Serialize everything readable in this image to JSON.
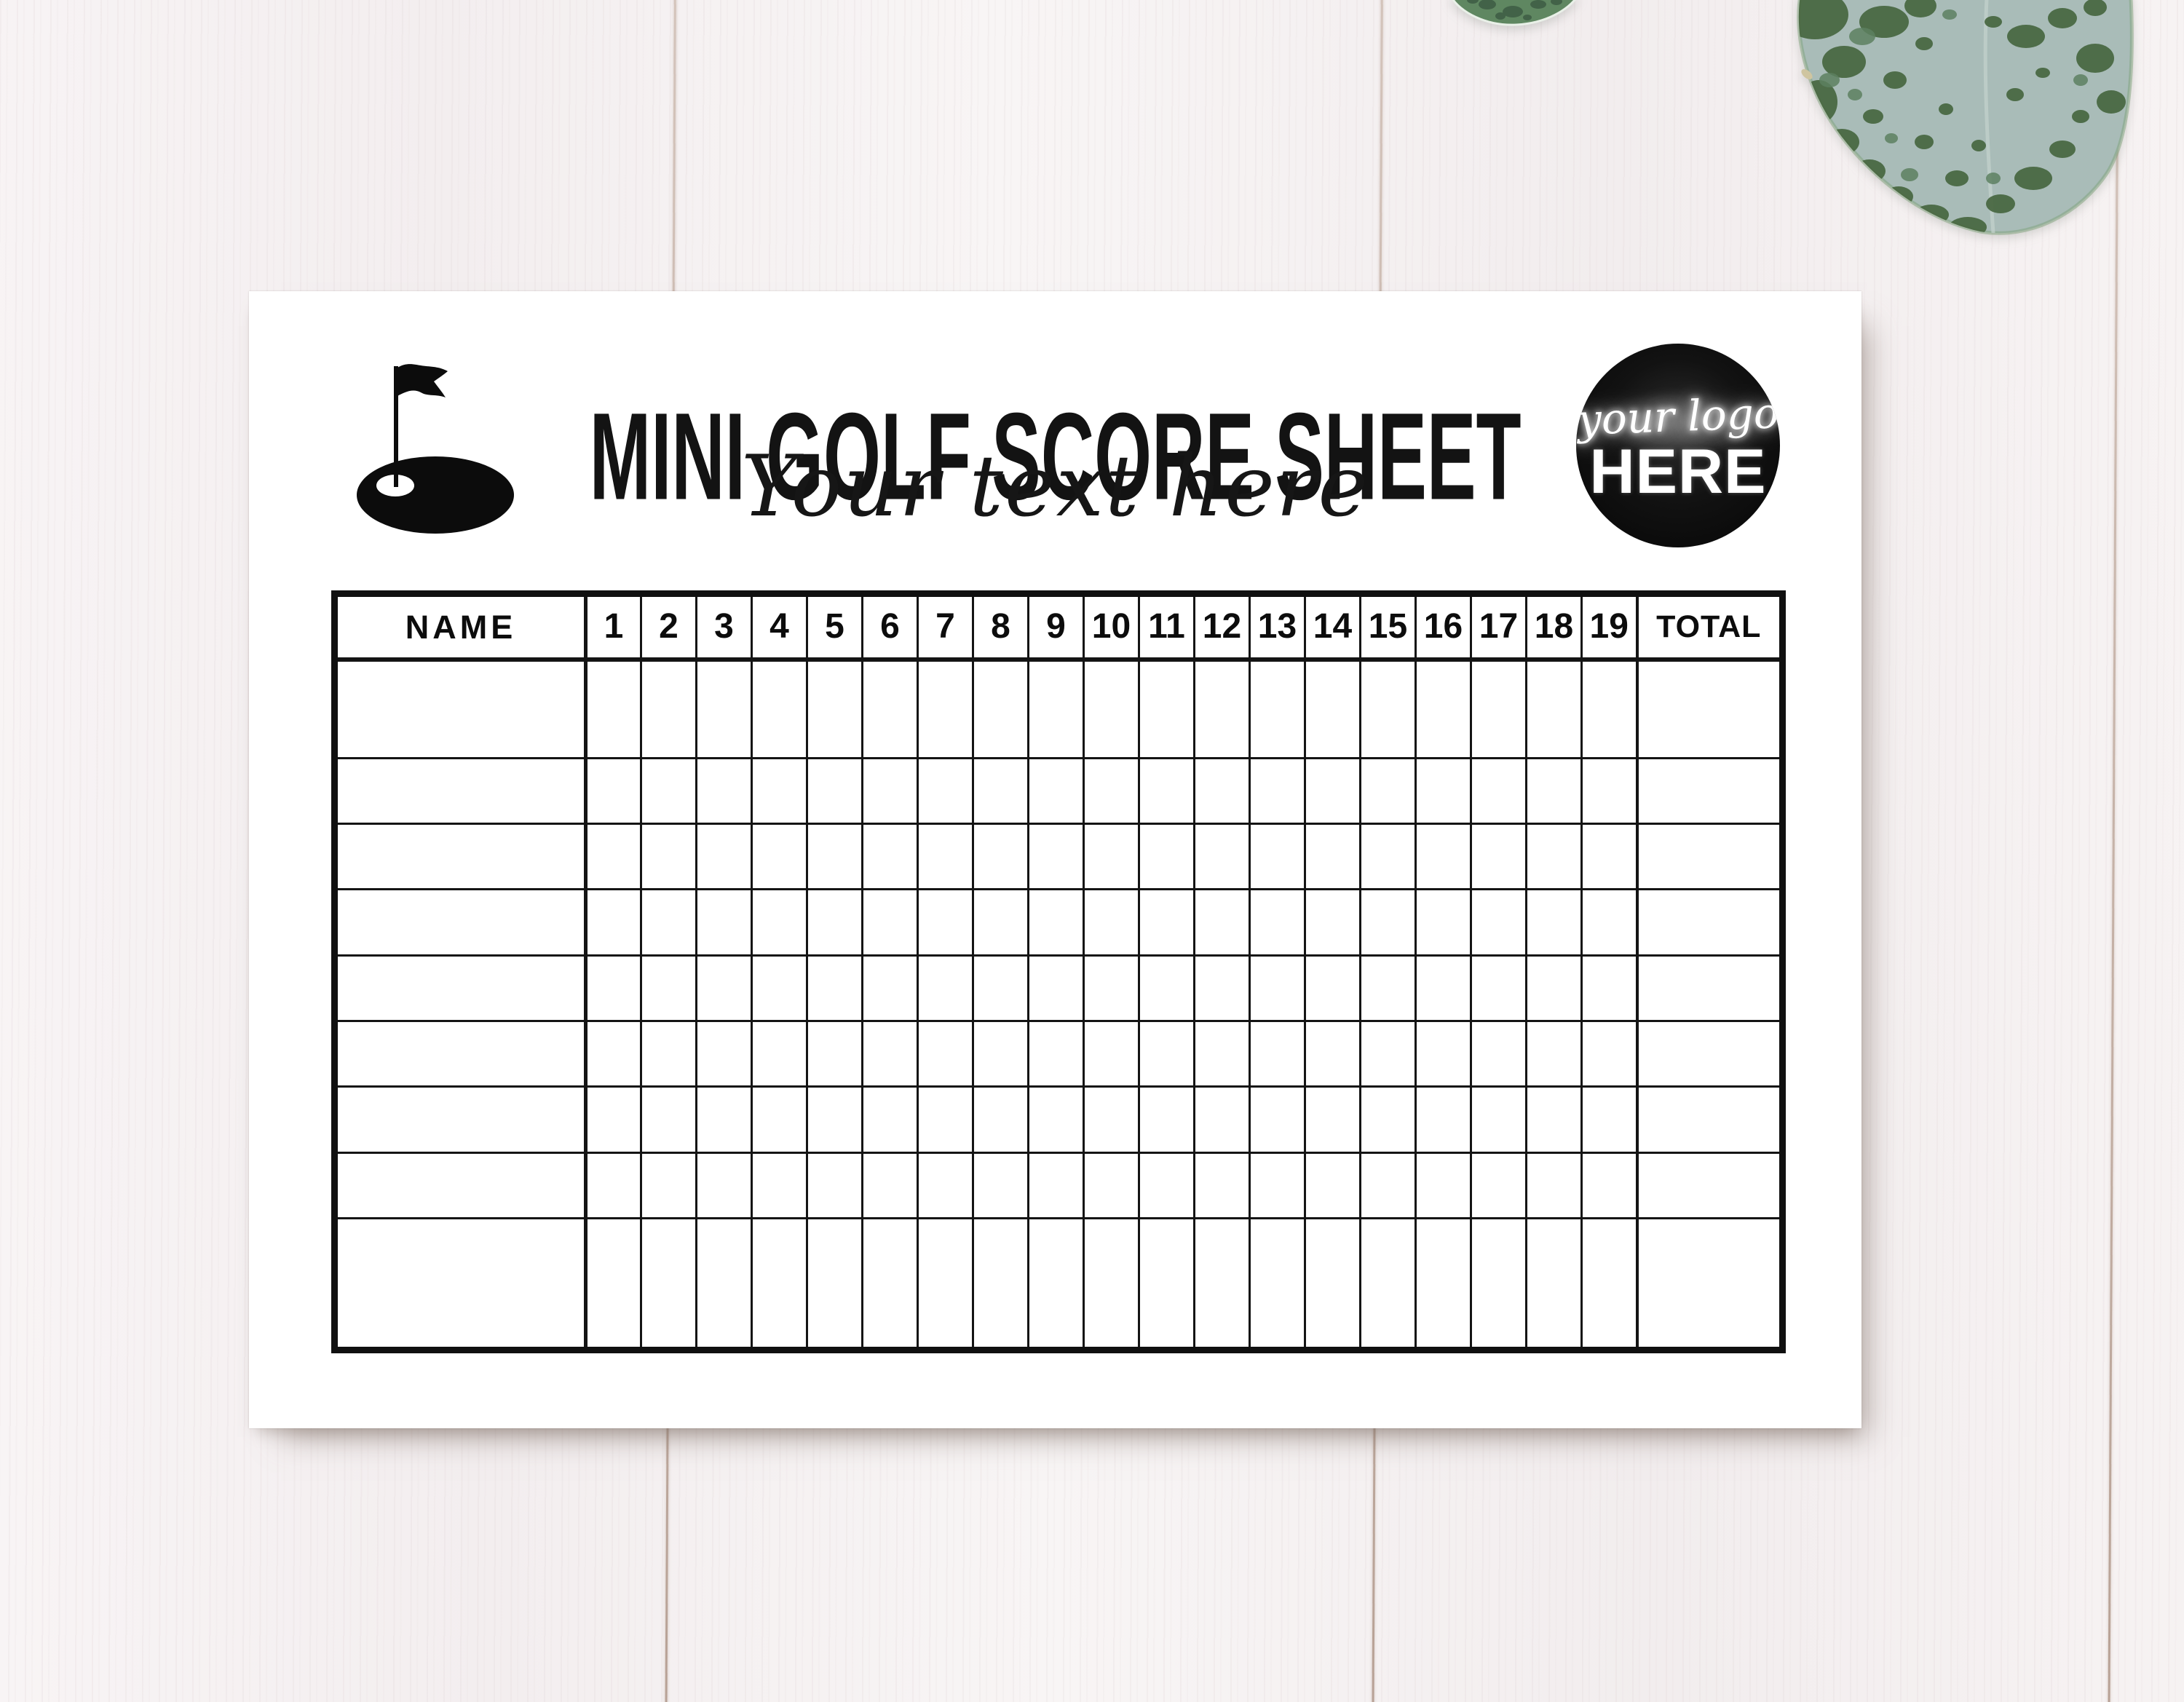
{
  "scene": {
    "backdrop": "white painted wood planks",
    "backdrop_color": "#f5f1f1",
    "plank_seam_color": "#a98f7f",
    "paper_color": "#ffffff",
    "leaf_base_color": "#a9bcb8",
    "leaf_spot_color": "#47663f",
    "small_leaf_color": "#5f8761"
  },
  "header": {
    "title": "MINI GOLF SCORE SHEET",
    "tagline": "Your text here",
    "golf_icon": "golf-green-flag-icon",
    "logo": {
      "line1": "your logo",
      "line2": "HERE",
      "circle_color": "#0b0b0b",
      "text_color": "#ffffff"
    }
  },
  "table": {
    "name_header": "NAME",
    "hole_headers": [
      "1",
      "2",
      "3",
      "4",
      "5",
      "6",
      "7",
      "8",
      "9",
      "10",
      "11",
      "12",
      "13",
      "14",
      "15",
      "16",
      "17",
      "18",
      "19"
    ],
    "total_header": "TOTAL",
    "empty_rows": 9,
    "line_color": "#101010"
  }
}
